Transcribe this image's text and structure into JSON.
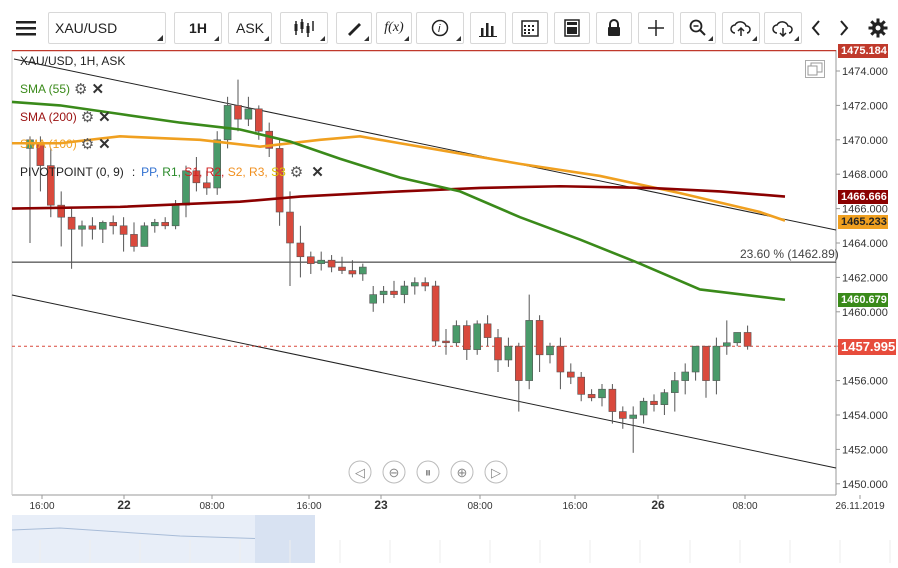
{
  "toolbar": {
    "symbol": "XAU/USD",
    "timeframe": "1H",
    "price_type": "ASK",
    "icons": [
      "menu-icon",
      "candles-icon",
      "draw-icon",
      "function-icon",
      "info-icon",
      "bars-icon",
      "calendar-icon",
      "calculator-icon",
      "lock-icon",
      "crosshair-icon",
      "zoom-icon",
      "upload-icon",
      "download-icon",
      "chevron-left-icon",
      "chevron-right-icon",
      "gear-icon"
    ]
  },
  "chart": {
    "title": "XAU/USD, 1H, ASK",
    "indicators": [
      {
        "label": "SMA (55)",
        "color": "#3a8a1a"
      },
      {
        "label": "SMA (200)",
        "color": "#9a1010"
      },
      {
        "label": "SMA (100)",
        "color": "#f0a020"
      }
    ],
    "pivot": {
      "prefix": "PIVOTPOINT (0, 9)",
      "sep": ":",
      "items": [
        {
          "t": "PP",
          "c": "#3070d0"
        },
        {
          "t": "R1",
          "c": "#2a8a2a"
        },
        {
          "t": "S1",
          "c": "#d02020"
        },
        {
          "t": "R2",
          "c": "#d02020"
        },
        {
          "t": "S2",
          "c": "#f09020"
        },
        {
          "t": "R3",
          "c": "#f09020"
        },
        {
          "t": "S3",
          "c": "#e0c000"
        }
      ]
    },
    "fib_label": "23.60 % (1462.89)",
    "y_ticks": [
      "1474.000",
      "1472.000",
      "1470.000",
      "1468.000",
      "1466.000",
      "1464.000",
      "1462.000",
      "1460.000",
      "1458.000",
      "1456.000",
      "1454.000",
      "1452.000",
      "1450.000"
    ],
    "price_tags": [
      {
        "v": "1475.184",
        "bg": "#c0392b"
      },
      {
        "v": "1466.666",
        "bg": "#8b0000"
      },
      {
        "v": "1465.233",
        "bg": "#f0a020",
        "fg": "#222"
      },
      {
        "v": "1460.679",
        "bg": "#3a8a1a"
      },
      {
        "v": "1457.995",
        "bg": "#e74c3c"
      }
    ],
    "x_labels": [
      "16:00",
      "22",
      "08:00",
      "16:00",
      "23",
      "08:00",
      "16:00",
      "26",
      "08:00",
      "26.11.2019"
    ],
    "colors": {
      "up": "#4a9a6a",
      "down": "#d9493c"
    }
  }
}
